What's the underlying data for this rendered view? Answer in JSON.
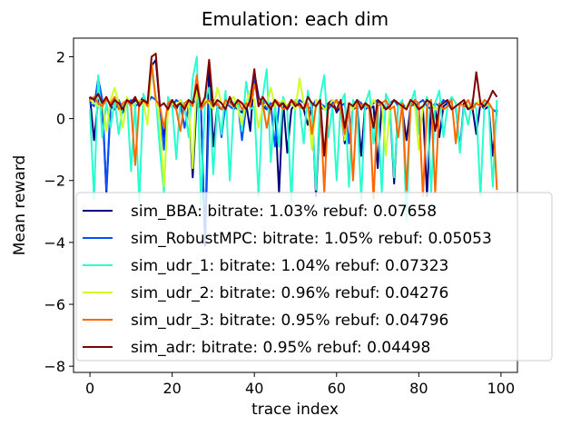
{
  "chart_data": {
    "type": "line",
    "title": "Emulation: each dim",
    "xlabel": "trace index",
    "ylabel": "Mean reward",
    "xlim": [
      -4,
      104
    ],
    "ylim": [
      -8.2,
      2.6
    ],
    "xticks": [
      0,
      20,
      40,
      60,
      80,
      100
    ],
    "yticks": [
      2,
      0,
      -2,
      -4,
      -6,
      -8
    ],
    "grid": false,
    "legend_position": "lower-right",
    "x": [
      0,
      1,
      2,
      3,
      4,
      5,
      6,
      7,
      8,
      9,
      10,
      11,
      12,
      13,
      14,
      15,
      16,
      17,
      18,
      19,
      20,
      21,
      22,
      23,
      24,
      25,
      26,
      27,
      28,
      29,
      30,
      31,
      32,
      33,
      34,
      35,
      36,
      37,
      38,
      39,
      40,
      41,
      42,
      43,
      44,
      45,
      46,
      47,
      48,
      49,
      50,
      51,
      52,
      53,
      54,
      55,
      56,
      57,
      58,
      59,
      60,
      61,
      62,
      63,
      64,
      65,
      66,
      67,
      68,
      69,
      70,
      71,
      72,
      73,
      74,
      75,
      76,
      77,
      78,
      79,
      80,
      81,
      82,
      83,
      84,
      85,
      86,
      87,
      88,
      89,
      90,
      91,
      92,
      93,
      94,
      95,
      96,
      97,
      98,
      99
    ],
    "series": [
      {
        "name": "sim_BBA: bitrate: 1.03% rebuf: 0.07658",
        "color": "#00007f",
        "values": [
          0.7,
          -0.7,
          0.6,
          0.5,
          -2.4,
          0.4,
          0.3,
          0.5,
          0.2,
          0.6,
          0.4,
          0.6,
          0.5,
          0.7,
          0.4,
          1.7,
          1.9,
          0.4,
          -0.6,
          0.3,
          0.5,
          0.3,
          0.6,
          0.4,
          0.5,
          -1.9,
          0.6,
          0.4,
          -4.1,
          1.8,
          -0.9,
          0.4,
          0.3,
          0.5,
          0.6,
          0.4,
          0.3,
          0.2,
          0.5,
          -0.4,
          1.5,
          0.7,
          0.4,
          0.3,
          0.5,
          0.4,
          -2.4,
          0.6,
          -1.1,
          0.3,
          0.5,
          0.4,
          0.3,
          -0.2,
          0.4,
          -2.5,
          0.4,
          0.3,
          0.5,
          0.6,
          0.2,
          0.4,
          -0.8,
          0.5,
          0.3,
          0.4,
          -1.2,
          0.5,
          0.3,
          0.4,
          -1.6,
          0.5,
          0.3,
          0.4,
          -2.1,
          0.5,
          0.3,
          -0.7,
          0.4,
          0.5,
          0.3,
          0.4,
          -2.5,
          0.5,
          0.3,
          -0.6,
          0.4,
          0.5,
          0.3,
          0.4,
          -1.0,
          0.5,
          0.3,
          0.4,
          -0.5,
          0.5,
          0.3,
          0.4,
          -1.2,
          0.3
        ]
      },
      {
        "name": "sim_RobustMPC: bitrate: 1.05% rebuf: 0.05053",
        "color": "#0050ff",
        "values": [
          0.5,
          0.4,
          1.3,
          0.6,
          -2.3,
          0.5,
          0.4,
          0.6,
          0.3,
          0.5,
          0.6,
          0.4,
          0.5,
          0.6,
          0.5,
          0.7,
          0.6,
          0.4,
          -1.0,
          0.5,
          0.4,
          0.6,
          0.5,
          -0.3,
          0.4,
          0.5,
          0.6,
          0.3,
          -4.0,
          0.5,
          0.6,
          0.4,
          -0.6,
          0.5,
          0.4,
          0.3,
          0.5,
          -0.7,
          0.4,
          0.5,
          1.3,
          0.4,
          0.6,
          0.3,
          0.5,
          -0.9,
          0.4,
          0.6,
          0.3,
          0.5,
          0.4,
          0.6,
          0.5,
          0.3,
          0.4,
          0.6,
          0.5,
          0.4,
          0.3,
          0.5,
          0.6,
          0.4,
          0.5,
          -0.8,
          0.4,
          0.6,
          0.5,
          0.3,
          0.4,
          0.5,
          0.6,
          0.4,
          0.3,
          0.5,
          0.6,
          0.4,
          0.5,
          0.3,
          0.6,
          0.4,
          0.5,
          0.6,
          0.4,
          0.3,
          0.5,
          0.4,
          0.6,
          0.5,
          0.3,
          0.4,
          0.5,
          0.6,
          0.4,
          0.3,
          0.5,
          0.4,
          0.6,
          0.5,
          0.3,
          0.2
        ]
      },
      {
        "name": "sim_udr_1: bitrate: 1.04% rebuf: 0.07323",
        "color": "#29ffce",
        "values": [
          0.3,
          -2.6,
          1.4,
          -0.6,
          0.5,
          -0.3,
          0.6,
          -0.5,
          0.4,
          0.6,
          -1.7,
          0.5,
          -2.7,
          0.8,
          0.4,
          1.6,
          0.7,
          -1.0,
          -2.4,
          0.7,
          0.4,
          -1.3,
          0.6,
          0.4,
          -0.6,
          1.3,
          2.0,
          -2.8,
          0.6,
          1.0,
          -1.8,
          0.4,
          -0.5,
          0.9,
          -2.0,
          0.5,
          0.6,
          -0.4,
          1.2,
          0.3,
          0.4,
          -2.5,
          0.7,
          1.6,
          -1.4,
          0.5,
          -0.9,
          0.7,
          0.3,
          -2.7,
          0.6,
          0.4,
          -0.8,
          0.9,
          0.3,
          -2.3,
          0.7,
          1.4,
          -0.6,
          0.4,
          -2.0,
          0.5,
          0.8,
          -2.2,
          0.6,
          0.3,
          -2.6,
          0.5,
          0.9,
          -0.8,
          0.4,
          -2.4,
          0.8,
          0.5,
          -1.9,
          0.4,
          0.6,
          -3.3,
          0.5,
          0.9,
          -0.5,
          0.3,
          0.7,
          -2.4,
          0.5,
          0.9,
          -0.6,
          0.4,
          0.7,
          0.5,
          -1.1,
          0.4,
          -0.2,
          0.6,
          0.3,
          -2.5,
          0.5,
          0.4,
          -2.2,
          0.6
        ]
      },
      {
        "name": "sim_udr_2: bitrate: 0.96% rebuf: 0.04276",
        "color": "#ceff29",
        "values": [
          0.6,
          0.5,
          0.4,
          0.5,
          -0.4,
          0.6,
          1.0,
          0.5,
          -0.3,
          0.7,
          0.4,
          0.5,
          0.6,
          0.5,
          -0.2,
          1.8,
          0.7,
          -0.1,
          -2.2,
          0.3,
          0.5,
          0.4,
          0.6,
          0.3,
          0.5,
          -1.6,
          1.2,
          0.4,
          0.6,
          0.5,
          0.3,
          1.0,
          0.5,
          0.4,
          0.6,
          0.7,
          0.3,
          -0.2,
          0.5,
          0.9,
          0.6,
          -0.3,
          0.4,
          0.5,
          1.0,
          0.4,
          0.5,
          0.6,
          0.4,
          0.5,
          0.3,
          1.3,
          0.5,
          0.4,
          -1.0,
          0.6,
          0.5,
          0.3,
          0.4,
          0.6,
          0.5,
          0.4,
          -0.7,
          0.5,
          0.3,
          0.6,
          0.4,
          0.5,
          0.3,
          0.6,
          0.4,
          0.5,
          -1.2,
          0.4,
          0.6,
          0.5,
          0.3,
          0.4,
          0.6,
          0.5,
          -1.0,
          0.4,
          0.6,
          0.5,
          0.3,
          0.4,
          0.5,
          0.6,
          0.3,
          0.4,
          0.5,
          0.6,
          0.4,
          0.3,
          0.5,
          0.6,
          0.4,
          0.5,
          0.3,
          -2.3
        ]
      },
      {
        "name": "sim_udr_3: bitrate: 0.95% rebuf: 0.04796",
        "color": "#ff6800",
        "values": [
          0.6,
          0.7,
          0.5,
          0.4,
          0.6,
          0.5,
          0.7,
          0.3,
          0.5,
          0.6,
          0.4,
          -1.5,
          0.5,
          0.6,
          0.4,
          1.8,
          0.6,
          0.4,
          -0.3,
          0.5,
          0.6,
          0.3,
          -0.4,
          0.5,
          0.6,
          0.4,
          1.4,
          0.3,
          0.5,
          0.6,
          0.4,
          0.5,
          0.3,
          0.6,
          0.5,
          0.4,
          0.6,
          0.3,
          0.5,
          0.4,
          1.1,
          0.6,
          0.5,
          -0.3,
          0.4,
          0.6,
          0.5,
          0.3,
          0.4,
          0.6,
          0.5,
          0.4,
          0.3,
          0.5,
          -0.5,
          0.4,
          0.6,
          -2.4,
          0.5,
          0.4,
          0.6,
          0.3,
          -0.5,
          0.4,
          -2.0,
          0.6,
          0.4,
          0.5,
          0.3,
          -2.6,
          0.4,
          0.5,
          0.6,
          0.3,
          0.4,
          -0.6,
          0.5,
          -2.3,
          0.4,
          0.6,
          0.5,
          -2.5,
          0.4,
          0.6,
          -2.4,
          0.5,
          0.3,
          0.4,
          0.6,
          -0.8,
          0.5,
          0.4,
          0.6,
          0.3,
          0.5,
          0.4,
          0.6,
          0.5,
          0.3,
          -2.3
        ]
      },
      {
        "name": "sim_adr: bitrate: 0.95% rebuf: 0.04498",
        "color": "#7f0000",
        "values": [
          0.7,
          0.6,
          0.8,
          0.5,
          0.7,
          0.4,
          0.6,
          0.5,
          0.3,
          0.6,
          0.5,
          0.7,
          0.4,
          0.6,
          0.5,
          2.0,
          2.1,
          0.4,
          0.5,
          0.3,
          0.6,
          0.4,
          0.5,
          0.3,
          0.6,
          0.5,
          1.1,
          0.4,
          0.7,
          1.9,
          0.4,
          0.6,
          0.5,
          0.3,
          0.7,
          0.4,
          0.6,
          0.5,
          0.3,
          0.6,
          1.6,
          0.4,
          0.7,
          0.5,
          0.3,
          0.6,
          0.4,
          0.5,
          0.3,
          0.6,
          0.4,
          0.5,
          0.3,
          0.7,
          0.5,
          0.4,
          0.6,
          -1.2,
          0.5,
          0.4,
          0.3,
          0.6,
          -0.3,
          0.5,
          0.4,
          0.6,
          0.3,
          0.5,
          0.4,
          -0.3,
          0.6,
          0.5,
          0.3,
          0.4,
          0.6,
          0.5,
          0.4,
          0.3,
          0.6,
          0.5,
          0.3,
          0.4,
          0.6,
          0.5,
          -0.4,
          0.4,
          0.5,
          0.6,
          0.3,
          0.4,
          0.5,
          0.6,
          0.3,
          0.4,
          1.5,
          0.5,
          0.4,
          0.6,
          0.9,
          0.7
        ]
      }
    ]
  }
}
